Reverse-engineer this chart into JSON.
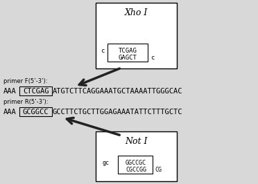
{
  "bg_color": "#d8d8d8",
  "xho_title": "Xho I",
  "not_title": "Not I",
  "primer_f_label": "primer F(5’-3’):",
  "primer_r_label": "primer R(5’-3’):",
  "primer_f_prefix": "AAA",
  "primer_f_box": "CTCGAG",
  "primer_f_suffix": "ATGTCTTCAGGAAATGCTAAAATTGGGCAC",
  "primer_r_prefix": "AAA",
  "primer_r_box": "GCGGCC",
  "primer_r_suffix": "GCCTTCTGCTTGGAGAAATATTCTTTGCTC",
  "xho_top": "c TCGAG",
  "xho_bot": "GAGCT c",
  "not_top": "gc GGCCGC",
  "not_bot": "CGCCGG CG"
}
